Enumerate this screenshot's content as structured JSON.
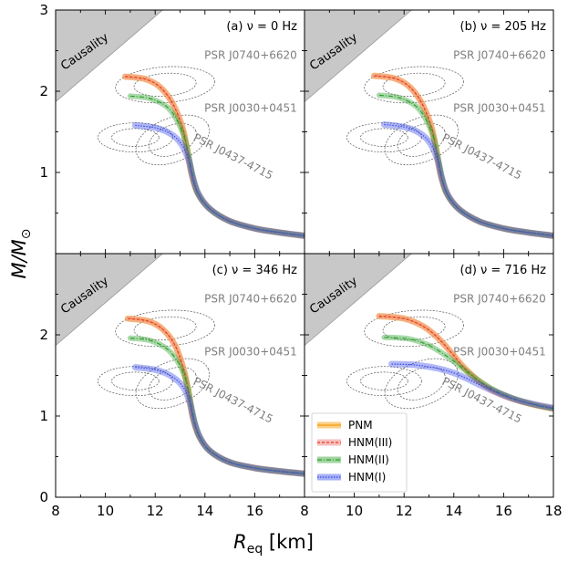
{
  "chart_data": {
    "type": "line",
    "xlabel_main": "R",
    "xlabel_sub": "eq",
    "xlabel_unit": " [km]",
    "ylabel_main": "M/M",
    "ylabel_sub": "⊙",
    "xlim": [
      8,
      18
    ],
    "ylim": [
      0,
      3
    ],
    "x_ticks_left": [
      "8",
      "10",
      "12",
      "14",
      "16",
      "8"
    ],
    "x_ticks_right": [
      "10",
      "12",
      "14",
      "16",
      "18"
    ],
    "y_ticks_top": [
      "1",
      "2",
      "3"
    ],
    "y_ticks_bottom": [
      "0",
      "1",
      "2"
    ],
    "causality_label": "Causality",
    "pulsars": [
      {
        "name": "PSR J0740+6620",
        "center": [
          12.4,
          2.08
        ]
      },
      {
        "name": "PSR J0030+0451",
        "center": [
          12.7,
          1.4
        ]
      },
      {
        "name": "PSR J0437-4715",
        "center": [
          11.2,
          1.43
        ]
      }
    ],
    "legend": [
      {
        "label": "PNM",
        "color": "#f5a623",
        "style": "solid"
      },
      {
        "label": "HNM(III)",
        "color": "#e8372e",
        "style": "dashed"
      },
      {
        "label": "HNM(II)",
        "color": "#2ca02c",
        "style": "dashdot"
      },
      {
        "label": "HNM(I)",
        "color": "#3b4ee8",
        "style": "dotted"
      }
    ],
    "panels": [
      {
        "label": "(a) ν = 0 Hz",
        "series": [
          {
            "name": "PNM",
            "points": [
              [
                10.8,
                2.18
              ],
              [
                11.6,
                2.15
              ],
              [
                12.2,
                2.05
              ],
              [
                12.7,
                1.85
              ],
              [
                13.1,
                1.55
              ],
              [
                13.3,
                1.25
              ],
              [
                13.45,
                1.0
              ],
              [
                13.7,
                0.75
              ],
              [
                14.2,
                0.55
              ],
              [
                15,
                0.4
              ],
              [
                16,
                0.31
              ],
              [
                17,
                0.26
              ],
              [
                18,
                0.22
              ]
            ]
          },
          {
            "name": "HNM(III)",
            "points": [
              [
                10.8,
                2.18
              ],
              [
                11.6,
                2.15
              ],
              [
                12.2,
                2.05
              ],
              [
                12.7,
                1.85
              ],
              [
                13.1,
                1.55
              ],
              [
                13.3,
                1.25
              ],
              [
                13.45,
                1.0
              ],
              [
                13.7,
                0.75
              ],
              [
                14.2,
                0.55
              ],
              [
                15,
                0.4
              ],
              [
                16,
                0.31
              ],
              [
                17,
                0.26
              ],
              [
                18,
                0.22
              ]
            ]
          },
          {
            "name": "HNM(II)",
            "points": [
              [
                11.0,
                1.94
              ],
              [
                11.8,
                1.91
              ],
              [
                12.5,
                1.8
              ],
              [
                12.95,
                1.6
              ],
              [
                13.25,
                1.35
              ],
              [
                13.45,
                1.05
              ],
              [
                13.7,
                0.75
              ],
              [
                14.2,
                0.55
              ],
              [
                15,
                0.4
              ],
              [
                16,
                0.31
              ],
              [
                17,
                0.26
              ],
              [
                18,
                0.22
              ]
            ]
          },
          {
            "name": "HNM(I)",
            "points": [
              [
                11.2,
                1.58
              ],
              [
                12.0,
                1.55
              ],
              [
                12.6,
                1.48
              ],
              [
                13.05,
                1.35
              ],
              [
                13.35,
                1.15
              ],
              [
                13.5,
                0.95
              ],
              [
                13.75,
                0.73
              ],
              [
                14.2,
                0.55
              ],
              [
                15,
                0.4
              ],
              [
                16,
                0.31
              ],
              [
                17,
                0.26
              ],
              [
                18,
                0.22
              ]
            ]
          }
        ]
      },
      {
        "label": "(b) ν = 205 Hz",
        "series": [
          {
            "name": "PNM",
            "points": [
              [
                10.8,
                2.19
              ],
              [
                11.6,
                2.16
              ],
              [
                12.2,
                2.06
              ],
              [
                12.7,
                1.86
              ],
              [
                13.1,
                1.56
              ],
              [
                13.3,
                1.26
              ],
              [
                13.45,
                1.0
              ],
              [
                13.7,
                0.75
              ],
              [
                14.2,
                0.55
              ],
              [
                15,
                0.4
              ],
              [
                16,
                0.31
              ],
              [
                17,
                0.26
              ],
              [
                18,
                0.22
              ]
            ]
          },
          {
            "name": "HNM(III)",
            "points": [
              [
                10.8,
                2.19
              ],
              [
                11.6,
                2.16
              ],
              [
                12.2,
                2.06
              ],
              [
                12.7,
                1.86
              ],
              [
                13.1,
                1.56
              ],
              [
                13.3,
                1.26
              ],
              [
                13.45,
                1.0
              ],
              [
                13.7,
                0.75
              ],
              [
                14.2,
                0.55
              ],
              [
                15,
                0.4
              ],
              [
                16,
                0.31
              ],
              [
                17,
                0.26
              ],
              [
                18,
                0.22
              ]
            ]
          },
          {
            "name": "HNM(II)",
            "points": [
              [
                11.0,
                1.95
              ],
              [
                11.8,
                1.92
              ],
              [
                12.5,
                1.81
              ],
              [
                12.95,
                1.61
              ],
              [
                13.25,
                1.36
              ],
              [
                13.45,
                1.05
              ],
              [
                13.7,
                0.75
              ],
              [
                14.2,
                0.55
              ],
              [
                15,
                0.4
              ],
              [
                16,
                0.31
              ],
              [
                17,
                0.26
              ],
              [
                18,
                0.22
              ]
            ]
          },
          {
            "name": "HNM(I)",
            "points": [
              [
                11.2,
                1.59
              ],
              [
                12.0,
                1.56
              ],
              [
                12.6,
                1.49
              ],
              [
                13.05,
                1.36
              ],
              [
                13.35,
                1.15
              ],
              [
                13.5,
                0.95
              ],
              [
                13.75,
                0.73
              ],
              [
                14.2,
                0.55
              ],
              [
                15,
                0.4
              ],
              [
                16,
                0.31
              ],
              [
                17,
                0.26
              ],
              [
                18,
                0.22
              ]
            ]
          }
        ]
      },
      {
        "label": "(c) ν = 346 Hz",
        "series": [
          {
            "name": "PNM",
            "points": [
              [
                10.9,
                2.2
              ],
              [
                11.7,
                2.17
              ],
              [
                12.3,
                2.07
              ],
              [
                12.8,
                1.87
              ],
              [
                13.15,
                1.57
              ],
              [
                13.35,
                1.27
              ],
              [
                13.5,
                1.0
              ],
              [
                13.75,
                0.76
              ],
              [
                14.2,
                0.57
              ],
              [
                15,
                0.43
              ],
              [
                16,
                0.36
              ],
              [
                17,
                0.32
              ],
              [
                18,
                0.29
              ]
            ]
          },
          {
            "name": "HNM(III)",
            "points": [
              [
                10.9,
                2.2
              ],
              [
                11.7,
                2.17
              ],
              [
                12.3,
                2.07
              ],
              [
                12.8,
                1.87
              ],
              [
                13.15,
                1.57
              ],
              [
                13.35,
                1.27
              ],
              [
                13.5,
                1.0
              ],
              [
                13.75,
                0.76
              ],
              [
                14.2,
                0.57
              ],
              [
                15,
                0.43
              ],
              [
                16,
                0.36
              ],
              [
                17,
                0.32
              ],
              [
                18,
                0.29
              ]
            ]
          },
          {
            "name": "HNM(II)",
            "points": [
              [
                11.0,
                1.96
              ],
              [
                11.8,
                1.93
              ],
              [
                12.5,
                1.82
              ],
              [
                13.0,
                1.62
              ],
              [
                13.3,
                1.37
              ],
              [
                13.5,
                1.05
              ],
              [
                13.75,
                0.76
              ],
              [
                14.2,
                0.57
              ],
              [
                15,
                0.43
              ],
              [
                16,
                0.36
              ],
              [
                17,
                0.32
              ],
              [
                18,
                0.29
              ]
            ]
          },
          {
            "name": "HNM(I)",
            "points": [
              [
                11.2,
                1.6
              ],
              [
                12.0,
                1.57
              ],
              [
                12.6,
                1.5
              ],
              [
                13.1,
                1.37
              ],
              [
                13.4,
                1.16
              ],
              [
                13.55,
                0.95
              ],
              [
                13.8,
                0.74
              ],
              [
                14.2,
                0.57
              ],
              [
                15,
                0.43
              ],
              [
                16,
                0.36
              ],
              [
                17,
                0.32
              ],
              [
                18,
                0.29
              ]
            ]
          }
        ]
      },
      {
        "label": "(d) ν = 716 Hz",
        "series": [
          {
            "name": "PNM",
            "points": [
              [
                11.0,
                2.23
              ],
              [
                12.0,
                2.2
              ],
              [
                12.8,
                2.1
              ],
              [
                13.4,
                1.95
              ],
              [
                13.9,
                1.78
              ],
              [
                14.4,
                1.6
              ],
              [
                15.0,
                1.43
              ],
              [
                15.6,
                1.31
              ],
              [
                16.3,
                1.22
              ],
              [
                17.2,
                1.14
              ],
              [
                18,
                1.09
              ]
            ]
          },
          {
            "name": "HNM(III)",
            "points": [
              [
                11.0,
                2.23
              ],
              [
                12.0,
                2.2
              ],
              [
                12.8,
                2.1
              ],
              [
                13.4,
                1.95
              ],
              [
                13.9,
                1.78
              ],
              [
                14.4,
                1.6
              ],
              [
                15.0,
                1.43
              ],
              [
                15.6,
                1.31
              ],
              [
                16.3,
                1.22
              ],
              [
                17.2,
                1.14
              ],
              [
                18,
                1.09
              ]
            ]
          },
          {
            "name": "HNM(II)",
            "points": [
              [
                11.2,
                1.97
              ],
              [
                12.2,
                1.95
              ],
              [
                13.0,
                1.87
              ],
              [
                13.7,
                1.74
              ],
              [
                14.3,
                1.6
              ],
              [
                14.9,
                1.46
              ],
              [
                15.5,
                1.34
              ],
              [
                16.2,
                1.24
              ],
              [
                17.1,
                1.15
              ],
              [
                18,
                1.09
              ]
            ]
          },
          {
            "name": "HNM(I)",
            "points": [
              [
                11.5,
                1.64
              ],
              [
                12.4,
                1.63
              ],
              [
                13.3,
                1.59
              ],
              [
                14.0,
                1.53
              ],
              [
                14.6,
                1.45
              ],
              [
                15.2,
                1.36
              ],
              [
                15.8,
                1.28
              ],
              [
                16.5,
                1.2
              ],
              [
                17.3,
                1.14
              ],
              [
                18,
                1.1
              ]
            ]
          }
        ]
      }
    ]
  }
}
